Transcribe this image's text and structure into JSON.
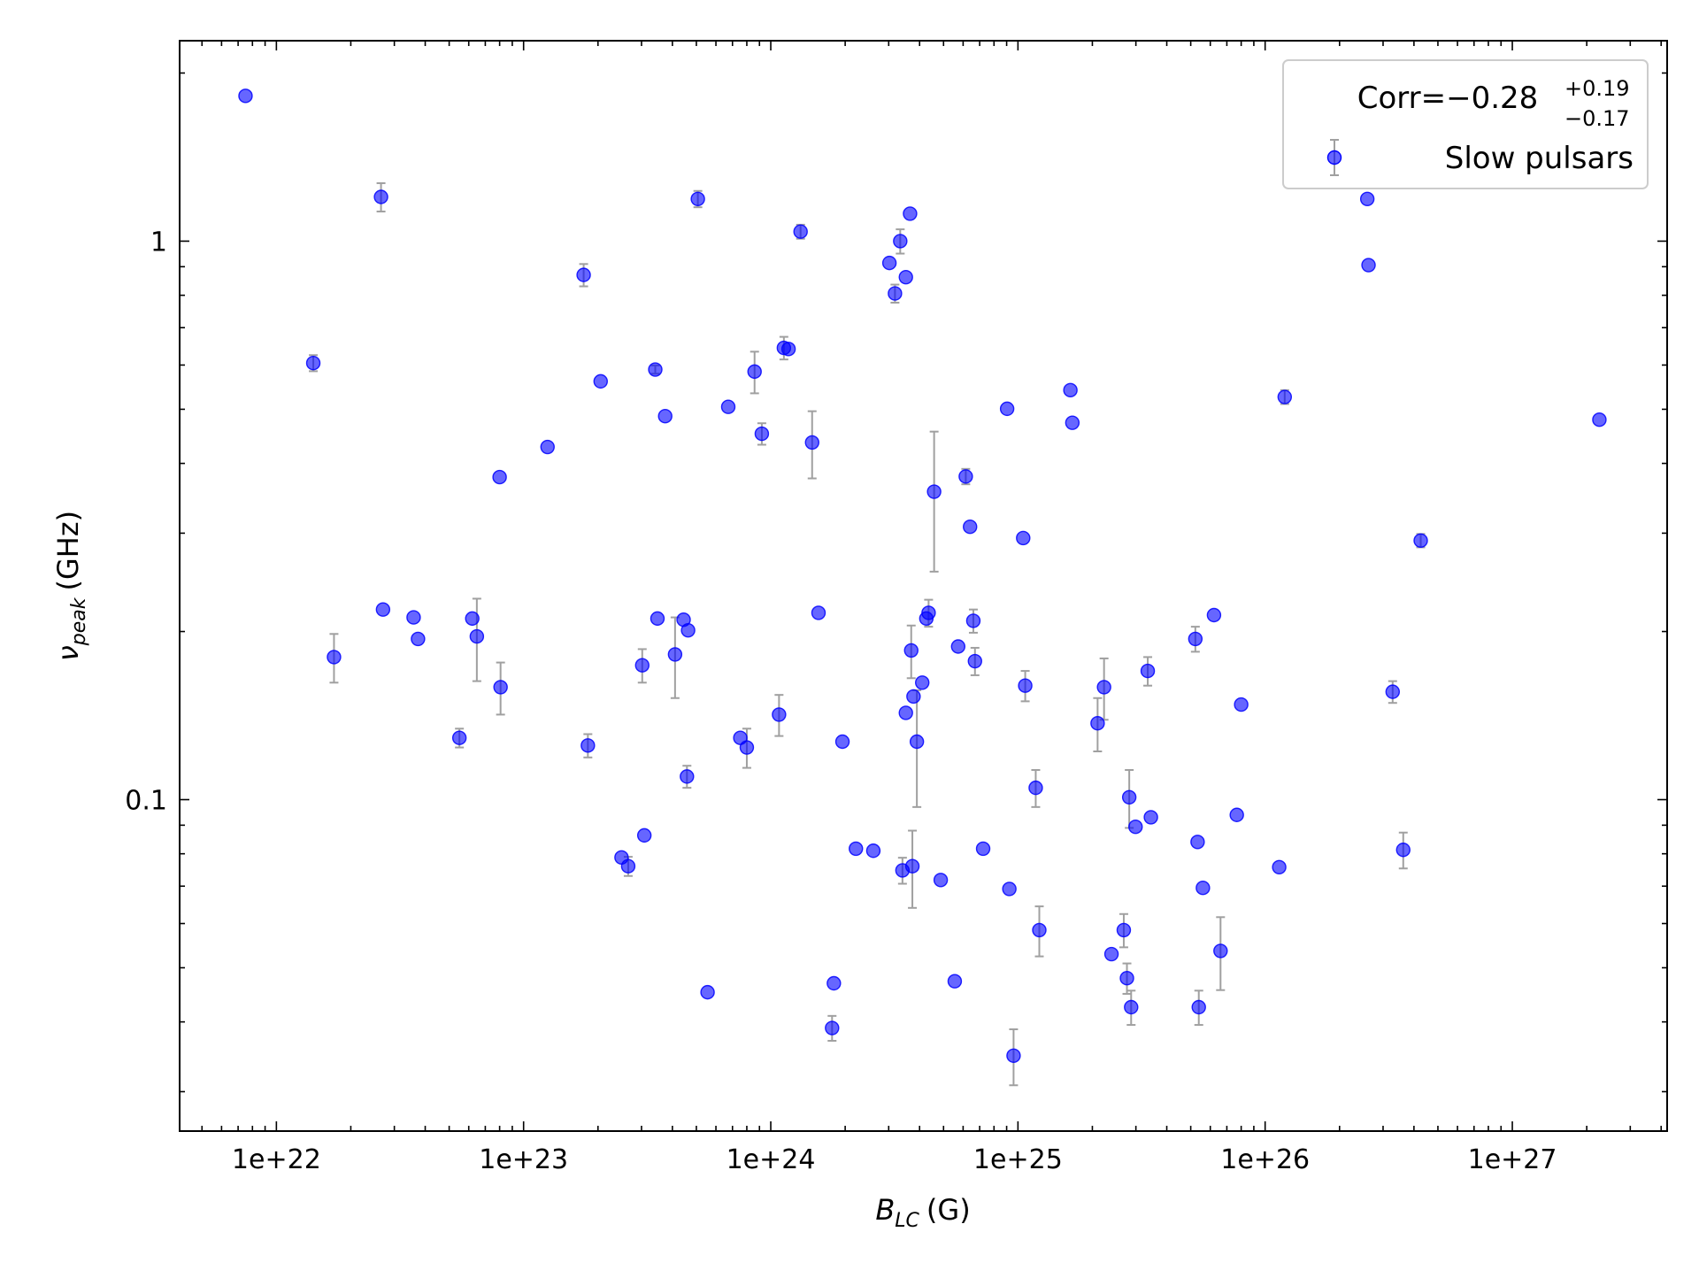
{
  "chart_data": {
    "type": "scatter",
    "xlabel": {
      "symbol": "B",
      "subscript": "LC",
      "unit": "(G)"
    },
    "ylabel": {
      "symbol": "ν",
      "subscript": "peak",
      "unit": "(GHz)"
    },
    "xscale": "log",
    "yscale": "log",
    "xlim": [
      4.06e+21,
      4.23e+27
    ],
    "ylim": [
      0.0255,
      2.285
    ],
    "xticks": [
      {
        "value": 1e+22,
        "label": "1e+22"
      },
      {
        "value": 1e+23,
        "label": "1e+23"
      },
      {
        "value": 1e+24,
        "label": "1e+24"
      },
      {
        "value": 1e+25,
        "label": "1e+25"
      },
      {
        "value": 1e+26,
        "label": "1e+26"
      },
      {
        "value": 1e+27,
        "label": "1e+27"
      }
    ],
    "yticks": [
      0.1,
      1
    ],
    "legend": {
      "loc": "upper right",
      "title": {
        "text": "Corr=−0.28",
        "upper": "+0.19",
        "lower": "−0.17"
      }
    },
    "errorbar_color": "#a0a0a0",
    "series": [
      {
        "name": "Slow pulsars",
        "color": "#0000ff",
        "x": [
          7.5e+21,
          1.41e+22,
          2.65e+22,
          1.71e+22,
          2.7e+22,
          3.59e+22,
          3.74e+22,
          5.5e+22,
          6.2e+22,
          6.47e+22,
          8e+22,
          8.07e+22,
          1.25e+23,
          1.75e+23,
          1.82e+23,
          2.05e+23,
          2.49e+23,
          2.65e+23,
          3.02e+23,
          3.08e+23,
          3.41e+23,
          3.48e+23,
          3.74e+23,
          4.1e+23,
          4.44e+23,
          4.63e+23,
          4.58e+23,
          5.55e+23,
          5.07e+23,
          6.73e+23,
          7.53e+23,
          8e+23,
          8.6e+23,
          9.2e+23,
          1.08e+24,
          1.13e+24,
          1.18e+24,
          1.32e+24,
          1.47e+24,
          1.56e+24,
          1.77e+24,
          1.8e+24,
          1.95e+24,
          2.21e+24,
          2.6e+24,
          3.02e+24,
          3.18e+24,
          3.34e+24,
          3.52e+24,
          3.66e+24,
          3.41e+24,
          3.52e+24,
          3.7e+24,
          3.74e+24,
          3.78e+24,
          3.9e+24,
          4.1e+24,
          4.26e+24,
          4.35e+24,
          4.58e+24,
          4.87e+24,
          5.55e+24,
          5.73e+24,
          6.15e+24,
          6.4e+24,
          6.6e+24,
          6.7e+24,
          7.23e+24,
          9.04e+24,
          9.23e+24,
          9.6e+24,
          1.05e+25,
          1.07e+25,
          1.18e+25,
          1.22e+25,
          1.63e+25,
          1.66e+25,
          2.1e+25,
          2.23e+25,
          2.39e+25,
          2.68e+25,
          2.76e+25,
          2.82e+25,
          2.87e+25,
          2.99e+25,
          3.35e+25,
          3.45e+25,
          5.22e+25,
          5.33e+25,
          5.39e+25,
          5.6e+25,
          6.21e+25,
          6.6e+25,
          7.68e+25,
          8e+25,
          1.14e+26,
          1.2e+26,
          2.59e+26,
          2.62e+26,
          3.28e+26,
          3.62e+26,
          4.26e+26,
          2.25e+27
        ],
        "values": [
          1.82,
          0.605,
          1.2,
          0.18,
          0.219,
          0.212,
          0.194,
          0.129,
          0.211,
          0.196,
          0.378,
          0.159,
          0.428,
          0.87,
          0.125,
          0.561,
          0.0788,
          0.076,
          0.174,
          0.0863,
          0.589,
          0.211,
          0.486,
          0.182,
          0.21,
          0.201,
          0.11,
          0.0452,
          1.19,
          0.505,
          0.129,
          0.124,
          0.584,
          0.452,
          0.142,
          0.644,
          0.641,
          1.04,
          0.436,
          0.216,
          0.039,
          0.0469,
          0.127,
          0.0817,
          0.081,
          0.914,
          0.806,
          1.0,
          0.862,
          1.12,
          0.0747,
          0.143,
          0.185,
          0.076,
          0.153,
          0.127,
          0.162,
          0.211,
          0.216,
          0.356,
          0.0718,
          0.0473,
          0.188,
          0.379,
          0.308,
          0.209,
          0.177,
          0.0817,
          0.501,
          0.0692,
          0.0348,
          0.294,
          0.16,
          0.105,
          0.0584,
          0.541,
          0.473,
          0.137,
          0.159,
          0.0529,
          0.0584,
          0.0479,
          0.101,
          0.0425,
          0.0894,
          0.17,
          0.093,
          0.194,
          0.084,
          0.0425,
          0.0695,
          0.214,
          0.0536,
          0.0939,
          0.148,
          0.0757,
          0.526,
          1.19,
          0.906,
          0.156,
          0.0813,
          0.291,
          0.479
        ],
        "yerr": [
          null,
          0.02,
          0.07,
          0.018,
          null,
          null,
          null,
          0.005,
          null,
          0.033,
          null,
          0.017,
          null,
          0.04,
          0.006,
          null,
          null,
          0.003,
          0.012,
          null,
          0.01,
          null,
          null,
          0.03,
          null,
          null,
          0.005,
          null,
          0.04,
          null,
          null,
          0.01,
          0.05,
          0.02,
          0.012,
          0.03,
          null,
          0.03,
          0.06,
          null,
          0.002,
          null,
          null,
          null,
          null,
          null,
          0.03,
          0.05,
          null,
          null,
          0.004,
          null,
          0.02,
          0.012,
          null,
          0.03,
          null,
          null,
          0.012,
          0.1,
          null,
          null,
          null,
          0.012,
          null,
          0.01,
          0.01,
          null,
          null,
          null,
          0.004,
          null,
          0.01,
          0.008,
          0.006,
          null,
          null,
          0.015,
          0.02,
          null,
          0.004,
          0.003,
          0.012,
          0.003,
          null,
          0.01,
          null,
          0.01,
          null,
          0.003,
          null,
          null,
          0.008,
          null,
          null,
          null,
          0.015,
          null,
          null,
          0.007,
          0.006,
          0.008,
          null
        ]
      }
    ]
  }
}
